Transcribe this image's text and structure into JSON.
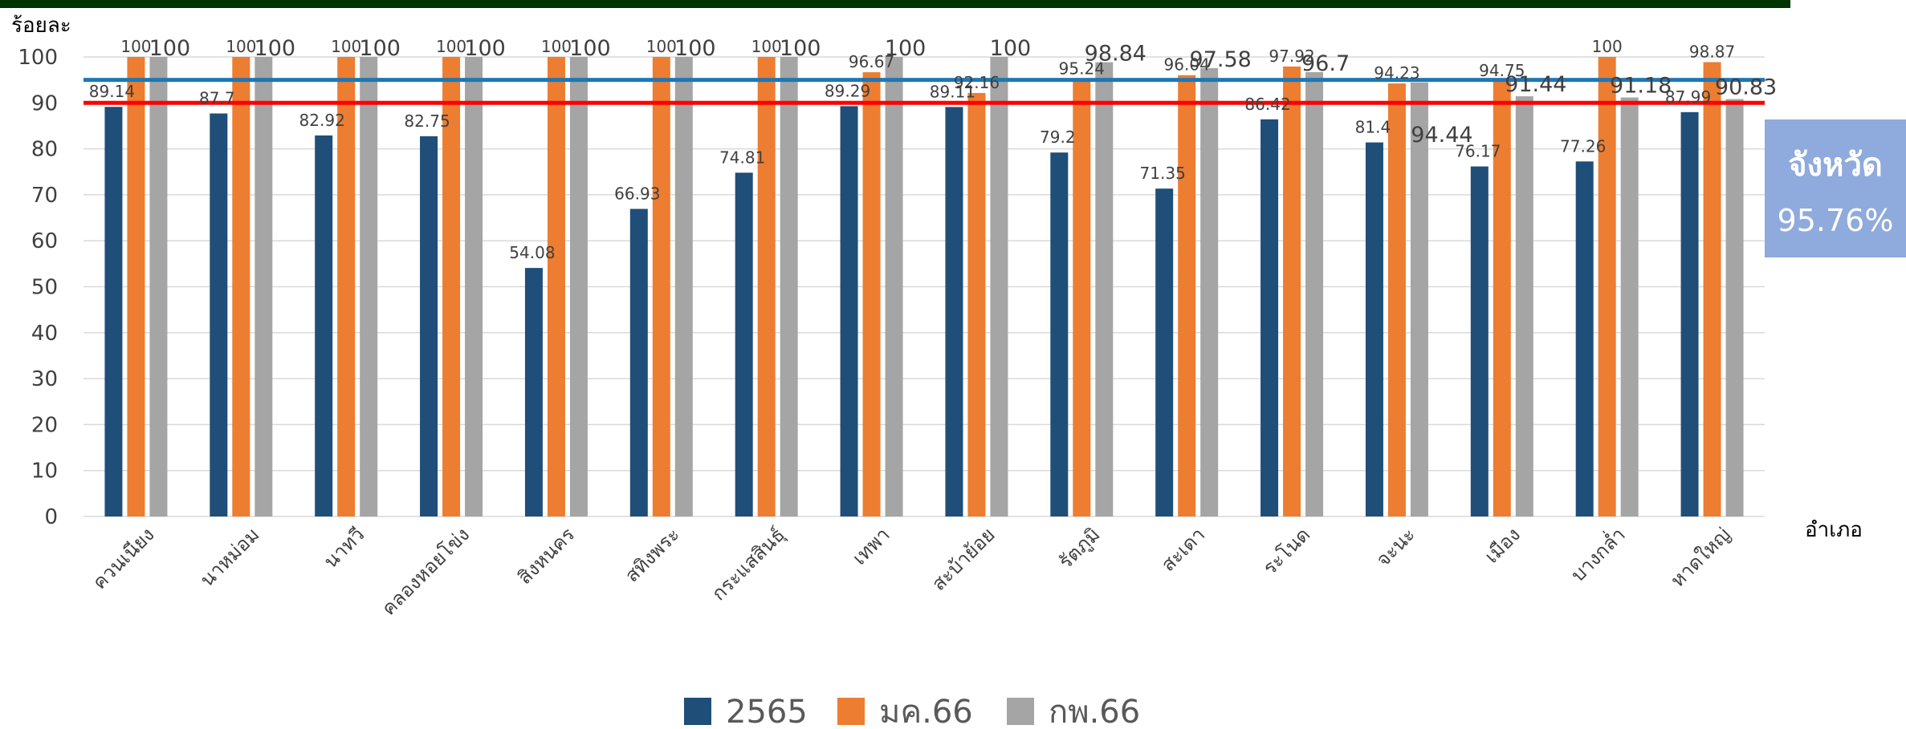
{
  "colors": {
    "top_bar": "#003300",
    "series_2565": "#1F4E79",
    "series_jan66": "#ED7D31",
    "series_feb66": "#A5A5A5",
    "target_line_90": "#FF0000",
    "target_line_95": "#1F77B4",
    "province_box": "#8FAADC",
    "gridline": "#D9D9D9"
  },
  "province_box": {
    "title": "จังหวัด",
    "value": "95.76%"
  },
  "chart_data": {
    "type": "bar",
    "ylabel": "ร้อยละ",
    "xlabel": "อำเภอ",
    "ylim": [
      0,
      100
    ],
    "yticks": [
      0,
      10,
      20,
      30,
      40,
      50,
      60,
      70,
      80,
      90,
      100
    ],
    "grid": true,
    "legend_position": "bottom",
    "categories": [
      "ควนเนียง",
      "นาหม่อม",
      "นาทวี",
      "คลองหอยโข่ง",
      "สิงหนคร",
      "สทิงพระ",
      "กระแสสินธุ์",
      "เทพา",
      "สะบ้าย้อย",
      "รัตภูมิ",
      "สะเดา",
      "ระโนด",
      "จะนะ",
      "เมือง",
      "บางกล่ำ",
      "หาดใหญ่"
    ],
    "series": [
      {
        "name": "2565",
        "values": [
          89.14,
          87.7,
          82.92,
          82.75,
          54.08,
          66.93,
          74.81,
          89.29,
          89.11,
          79.2,
          71.35,
          86.42,
          81.4,
          76.17,
          77.26,
          87.99
        ],
        "labels": [
          "89.14",
          "87.7",
          "82.92",
          "82.75",
          "54.08",
          "66.93",
          "74.81",
          "89.29",
          "89.11",
          "79.2",
          "71.35",
          "86.42",
          "81.4",
          "76.17",
          "77.26",
          "87.99"
        ]
      },
      {
        "name": "มค.66",
        "values": [
          100,
          100,
          100,
          100,
          100,
          100,
          100,
          96.67,
          92.16,
          95.24,
          96.04,
          97.92,
          94.23,
          94.75,
          100,
          98.87
        ],
        "labels": [
          "100",
          "100",
          "100",
          "100",
          "100",
          "100",
          "100",
          "96.67",
          "92.16",
          "95.24",
          "96.04",
          "97.92",
          "94.23",
          "94.75",
          "100",
          "98.87"
        ]
      },
      {
        "name": "กพ.66",
        "values": [
          100,
          100,
          100,
          100,
          100,
          100,
          100,
          100,
          100,
          98.84,
          97.58,
          96.7,
          94.44,
          91.44,
          91.18,
          90.83
        ],
        "labels": [
          "100",
          "100",
          "100",
          "100",
          "100",
          "100",
          "100",
          "100",
          "100",
          "98.84",
          "97.58",
          "96.7",
          "94.44",
          "91.44",
          "91.18",
          "90.83"
        ]
      }
    ],
    "reference_lines": [
      {
        "value": 90,
        "color": "#FF0000"
      },
      {
        "value": 95,
        "color": "#1F77B4"
      }
    ]
  }
}
